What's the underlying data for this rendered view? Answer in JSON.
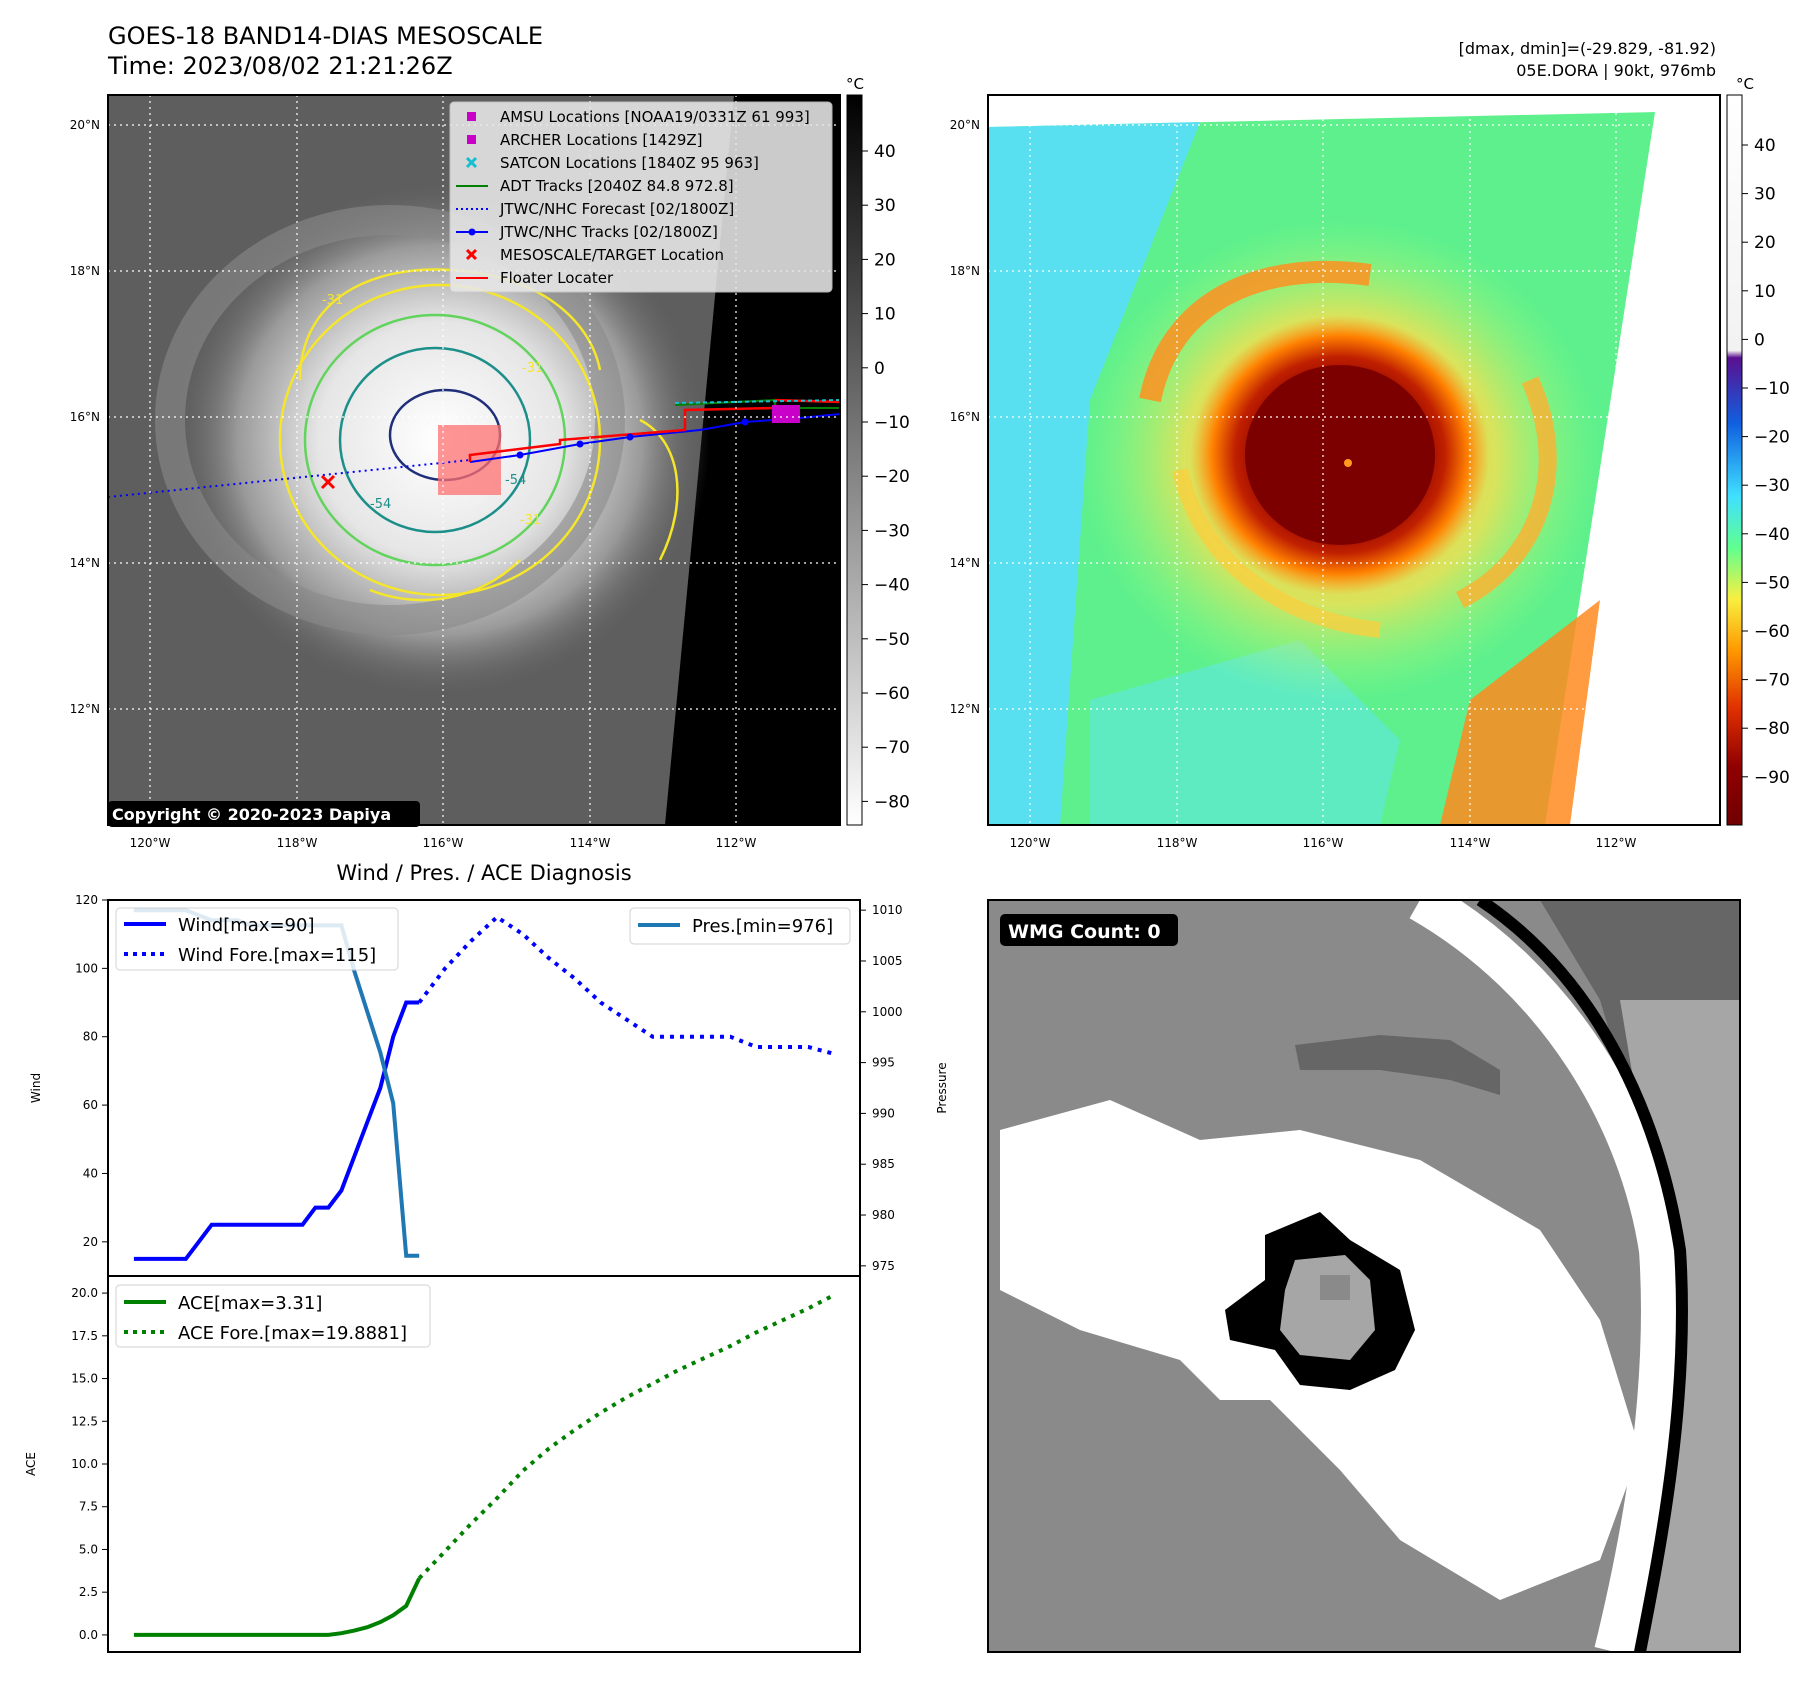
{
  "header": {
    "title": "GOES-18 BAND14-DIAS MESOSCALE",
    "time": "Time: 2023/08/02 21:21:26Z",
    "stats": "[dmax, dmin]=(-29.829, -81.92)",
    "storm": "05E.DORA | 90kt, 976mb"
  },
  "map_axes": {
    "lat_ticks": [
      "20°N",
      "18°N",
      "16°N",
      "14°N",
      "12°N"
    ],
    "lon_ticks": [
      "120°W",
      "118°W",
      "116°W",
      "114°W",
      "112°W"
    ],
    "unit": "°C"
  },
  "ir_panel": {
    "copyright": "Copyright © 2020-2023 Dapiya",
    "contour_labels": [
      "-31",
      "-31",
      "-54",
      "-31",
      "-54"
    ],
    "colorbar_ticks": [
      "40",
      "30",
      "20",
      "10",
      "0",
      "−10",
      "−20",
      "−30",
      "−40",
      "−50",
      "−60",
      "−70",
      "−80"
    ],
    "legend": [
      {
        "label": "AMSU Locations [NOAA19/0331Z 61 993]",
        "color": "#c800c8",
        "marker": "square"
      },
      {
        "label": "ARCHER Locations [1429Z]",
        "color": "#c800c8",
        "marker": "square"
      },
      {
        "label": "SATCON Locations [1840Z 95 963]",
        "color": "#17becf",
        "marker": "x"
      },
      {
        "label": "ADT Tracks [2040Z 84.8 972.8]",
        "color": "#008000",
        "marker": "line"
      },
      {
        "label": "JTWC/NHC Forecast [02/1800Z]",
        "color": "#0000ff",
        "marker": "dotted"
      },
      {
        "label": "JTWC/NHC Tracks [02/1800Z]",
        "color": "#0000ff",
        "marker": "line-dot"
      },
      {
        "label": "MESOSCALE/TARGET Location",
        "color": "#ff0000",
        "marker": "x"
      },
      {
        "label": "Floater Locater",
        "color": "#ff0000",
        "marker": "line"
      }
    ]
  },
  "color_panel": {
    "colorbar_ticks": [
      "40",
      "30",
      "20",
      "10",
      "0",
      "−10",
      "−20",
      "−30",
      "−40",
      "−50",
      "−60",
      "−70",
      "−80",
      "−90"
    ]
  },
  "wmg_panel": {
    "badge": "WMG Count: 0"
  },
  "chart_data": [
    {
      "type": "line",
      "title": "Wind / Pres. / ACE Diagnosis",
      "ylabel": "Wind",
      "ylabel_right": "Pressure",
      "ylim": [
        10,
        120
      ],
      "ylim_right": [
        974,
        1011
      ],
      "yticks": [
        20,
        40,
        60,
        80,
        100,
        120
      ],
      "yticks_right": [
        975,
        980,
        985,
        990,
        995,
        1000,
        1005,
        1010
      ],
      "legend_left": [
        "Wind[max=90]",
        "Wind Fore.[max=115]"
      ],
      "legend_right": [
        "Pres.[min=976]"
      ],
      "series": [
        {
          "name": "Wind[max=90]",
          "style": "solid",
          "color": "#0000ff",
          "axis": "left",
          "x": [
            0,
            1,
            2,
            3,
            4,
            5,
            6,
            7,
            8,
            9,
            10,
            11,
            12,
            13,
            14,
            15,
            16,
            17,
            18,
            19,
            20,
            21,
            22
          ],
          "values": [
            15,
            15,
            15,
            15,
            15,
            20,
            25,
            25,
            25,
            25,
            25,
            25,
            25,
            25,
            30,
            30,
            35,
            45,
            55,
            65,
            80,
            90,
            90
          ]
        },
        {
          "name": "Wind Fore.[max=115]",
          "style": "dotted",
          "color": "#0000ff",
          "axis": "left",
          "x": [
            22,
            24,
            26,
            28,
            30,
            32,
            34,
            36,
            38,
            40,
            42,
            44,
            46,
            48,
            50,
            52,
            54
          ],
          "values": [
            90,
            100,
            108,
            115,
            110,
            103,
            97,
            90,
            85,
            80,
            80,
            80,
            80,
            77,
            77,
            77,
            75
          ]
        },
        {
          "name": "Pres.[min=976]",
          "style": "solid",
          "color": "#1f77b4",
          "axis": "right",
          "x": [
            0,
            1,
            2,
            3,
            4,
            5,
            6,
            7,
            8,
            9,
            10,
            11,
            12,
            13,
            14,
            15,
            16,
            17,
            18,
            19,
            20,
            21,
            22
          ],
          "values": [
            1010,
            1010,
            1010,
            1010,
            1010,
            1009.5,
            1009,
            1009,
            1009,
            1008.5,
            1008.5,
            1008.5,
            1008.5,
            1008.5,
            1008.5,
            1008.5,
            1008.5,
            1004,
            1000,
            996,
            991,
            976,
            976
          ]
        }
      ]
    },
    {
      "type": "line",
      "ylabel": "ACE",
      "ylim": [
        -1,
        21
      ],
      "yticks": [
        0.0,
        2.5,
        5.0,
        7.5,
        10.0,
        12.5,
        15.0,
        17.5,
        20.0
      ],
      "legend": [
        "ACE[max=3.31]",
        "ACE Fore.[max=19.8881]"
      ],
      "series": [
        {
          "name": "ACE[max=3.31]",
          "style": "solid",
          "color": "#008000",
          "x": [
            0,
            2,
            4,
            6,
            8,
            10,
            12,
            14,
            15,
            16,
            17,
            18,
            19,
            20,
            21,
            22
          ],
          "values": [
            0,
            0,
            0,
            0,
            0,
            0,
            0,
            0,
            0,
            0.1,
            0.25,
            0.45,
            0.75,
            1.15,
            1.7,
            3.31
          ]
        },
        {
          "name": "ACE Fore.[max=19.8881]",
          "style": "dotted",
          "color": "#008000",
          "x": [
            22,
            24,
            26,
            28,
            30,
            32,
            34,
            36,
            38,
            40,
            42,
            44,
            46,
            48,
            50,
            52,
            54
          ],
          "values": [
            3.31,
            4.9,
            6.5,
            8.0,
            9.6,
            10.9,
            12.0,
            13.0,
            13.9,
            14.7,
            15.5,
            16.2,
            16.9,
            17.7,
            18.4,
            19.1,
            19.89
          ]
        }
      ]
    }
  ]
}
